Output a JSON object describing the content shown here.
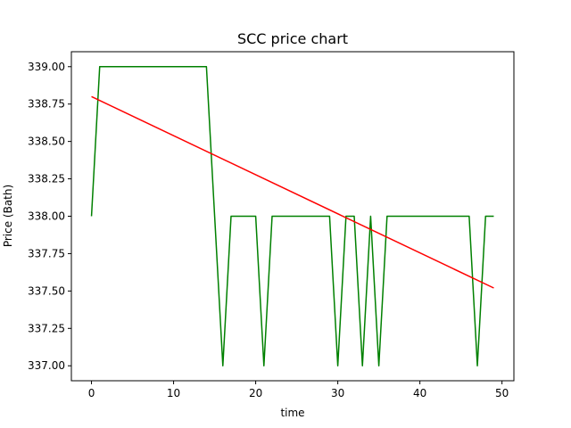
{
  "chart_data": {
    "type": "line",
    "title": "SCC price chart",
    "xlabel": "time",
    "ylabel": "Price (Bath)",
    "xlim": [
      -2.45,
      51.45
    ],
    "ylim": [
      336.9,
      339.1
    ],
    "x_ticks": [
      0,
      10,
      20,
      30,
      40,
      50
    ],
    "y_ticks": [
      337.0,
      337.25,
      337.5,
      337.75,
      338.0,
      338.25,
      338.5,
      338.75,
      339.0
    ],
    "y_tick_labels": [
      "337.00",
      "337.25",
      "337.50",
      "337.75",
      "338.00",
      "338.25",
      "338.50",
      "338.75",
      "339.00"
    ],
    "grid": false,
    "legend": false,
    "series": [
      {
        "color": "#008000",
        "x": [
          0,
          1,
          2,
          3,
          4,
          5,
          6,
          7,
          8,
          9,
          10,
          11,
          12,
          13,
          14,
          15,
          16,
          17,
          18,
          19,
          20,
          21,
          22,
          23,
          24,
          25,
          26,
          27,
          28,
          29,
          30,
          31,
          32,
          33,
          34,
          35,
          36,
          37,
          38,
          39,
          40,
          41,
          42,
          43,
          44,
          45,
          46,
          47,
          48,
          49
        ],
        "values": [
          338,
          339,
          339,
          339,
          339,
          339,
          339,
          339,
          339,
          339,
          339,
          339,
          339,
          339,
          339,
          338,
          337,
          338,
          338,
          338,
          338,
          337,
          338,
          338,
          338,
          338,
          338,
          338,
          338,
          338,
          337,
          338,
          338,
          337,
          338,
          337,
          338,
          338,
          338,
          338,
          338,
          338,
          338,
          338,
          338,
          338,
          338,
          337,
          338,
          338
        ]
      },
      {
        "color": "#ff0000",
        "x": [
          0,
          49
        ],
        "values": [
          338.8,
          337.52
        ]
      }
    ]
  }
}
